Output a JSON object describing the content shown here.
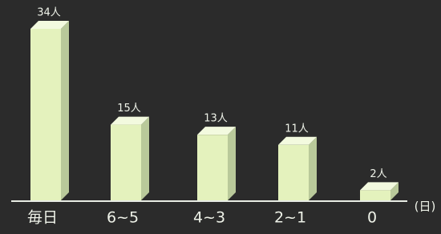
{
  "chart_data": {
    "type": "bar",
    "categories": [
      "毎日",
      "6~5",
      "4~3",
      "2~1",
      "0"
    ],
    "values": [
      34,
      15,
      13,
      11,
      2
    ],
    "value_labels": [
      "34人",
      "15人",
      "13人",
      "11人",
      "2人"
    ],
    "x_unit": "(日)",
    "color": "#e4f2bd"
  }
}
